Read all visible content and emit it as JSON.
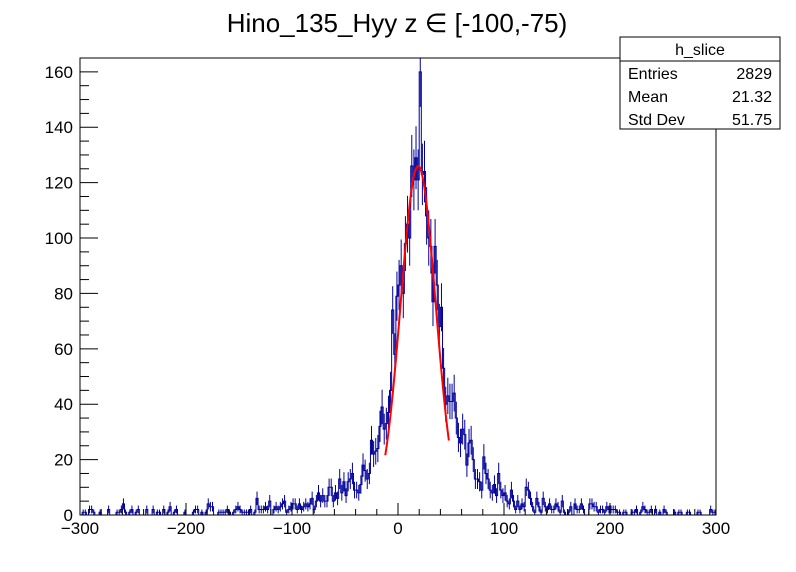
{
  "chart_data": {
    "type": "histogram",
    "title": "Hino_135_Hyy z  ∈ [-100,-75)",
    "xlabel": "",
    "ylabel": "",
    "xlim": [
      -300,
      300
    ],
    "ylim": [
      0,
      165
    ],
    "x_ticks": [
      -300,
      -200,
      -100,
      0,
      100,
      200,
      300
    ],
    "y_ticks": [
      0,
      20,
      40,
      60,
      80,
      100,
      120,
      140,
      160
    ],
    "grid": false,
    "bin_width": 2,
    "histogram_color": "#000099",
    "fit_color": "#ff0000",
    "profile": {
      "x": [
        -300,
        -150,
        -100,
        -80,
        -60,
        -40,
        -30,
        -20,
        -10,
        0,
        10,
        15,
        20,
        25,
        30,
        40,
        50,
        60,
        80,
        100,
        120,
        150,
        200,
        250,
        300
      ],
      "y": [
        0.4,
        1.5,
        3,
        5,
        8,
        12,
        17,
        25,
        42,
        72,
        108,
        121,
        126,
        122,
        108,
        70,
        41,
        25,
        14,
        8,
        5,
        3,
        1.5,
        0.6,
        0.4
      ]
    },
    "fit": {
      "function": "gaussian",
      "amplitude": 126,
      "mean": 19,
      "sigma": 16.5,
      "x_range": [
        -12,
        48
      ]
    },
    "stats_box": {
      "name": "h_slice",
      "rows": [
        {
          "label": "Entries",
          "value": "2829"
        },
        {
          "label": "Mean",
          "value": "21.32"
        },
        {
          "label": "Std Dev",
          "value": "51.75"
        }
      ]
    }
  }
}
